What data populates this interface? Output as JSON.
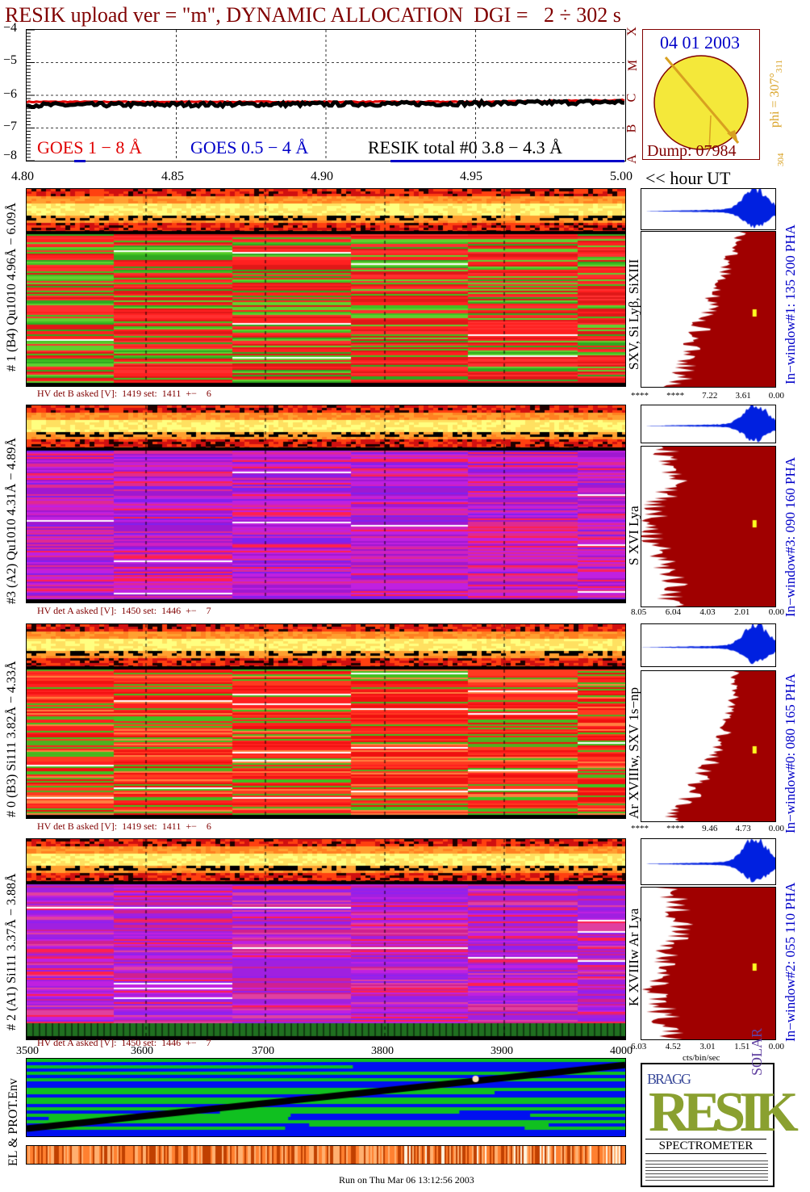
{
  "title": "RESIK upload ver = \"m\", DYNAMIC ALLOCATION  DGI =   2 ÷ 302 s",
  "goes_panel": {
    "yticks": [
      "−4",
      "−5",
      "−6",
      "−7",
      "−8"
    ],
    "class_labels": [
      "X",
      "M",
      "C",
      "B",
      "A"
    ],
    "legend_goes1": "GOES 1 − 8 Å",
    "legend_goes05": "GOES 0.5 − 4 Å",
    "legend_resik": "RESIK total #0  3.8 − 4.3 Å",
    "xticks": [
      "4.80",
      "4.85",
      "4.90",
      "4.95",
      "5.00"
    ],
    "xunit": "<< hour UT"
  },
  "sun": {
    "date": "04 01 2003",
    "dump": "Dump: 07984",
    "phi": "phi = 307°",
    "phi_sub": "311",
    "phi_low": "304"
  },
  "detectors": [
    {
      "ylabel": "# 1 (B4) Qu1010 4.96Å − 6.09Å",
      "lines": "SXV, Si Lyβ, SiXIII",
      "hv": "HV det B asked [V]:  1419 set:  1411  +−    6",
      "window": "In−window#1:  135 200 PHA",
      "xticks": [
        "****",
        "****",
        "7.22",
        "3.61",
        "0.00"
      ]
    },
    {
      "ylabel": "#3 (A2) Qu1010  4.31Å − 4.89Å",
      "lines": "S XVI Lya",
      "hv": "HV det A asked [V]:  1450 set:  1446  +−    7",
      "window": "In−window#3:  090 160 PHA",
      "xticks": [
        "8.05",
        "6.04",
        "4.03",
        "2.01",
        "0.00"
      ]
    },
    {
      "ylabel": "# 0 (B3) Si111  3.82Å − 4.33Å",
      "lines": "Ar XVIIIw,  SXV 1s−np",
      "hv": "HV det B asked [V]:  1419 set:  1411  +−    6",
      "window": "In−window#0:  080 165 PHA",
      "xticks": [
        "****",
        "****",
        "9.46",
        "4.73",
        "0.00"
      ]
    },
    {
      "ylabel": "# 2 (A1) Si111  3.37Å − 3.88Å",
      "lines": "K XVIIIw  Ar Lya",
      "hv": "HV det A asked [V]:  1450 set:  1446  +−    7",
      "window": "In−window#2:  055 110 PHA",
      "xticks": [
        "6.03",
        "4.52",
        "3.01",
        "1.51",
        "0.00"
      ]
    }
  ],
  "spectra_xunit": "cts/bin/sec",
  "env": {
    "ylabel": "EL & PROT.Env",
    "xticks": [
      "3500",
      "3600",
      "3700",
      "3800",
      "3900",
      "4000"
    ]
  },
  "logo": {
    "resik": "RESIK",
    "bragg": "BRAGG",
    "solar": "SOLAR",
    "spectrometer": "SPECTROMETER"
  },
  "footer": "Run on Thu Mar 06 13:12:56 2003",
  "colors": {
    "maroon": "#800000",
    "goes1": "#e00000",
    "goes05": "#0000c8",
    "sun": "#f4e83a",
    "spectrum": "#a00000",
    "pha": "#0020e0"
  },
  "chart_data": [
    {
      "type": "line",
      "title": "RESIK upload ver = \"m\", DYNAMIC ALLOCATION  DGI =   2 ÷ 302 s",
      "xlabel": "<< hour UT",
      "xlim": [
        4.8,
        5.0
      ],
      "ylim": [
        -8,
        -4
      ],
      "series": [
        {
          "name": "GOES 1 − 8 Å",
          "x": [
            4.8,
            4.85,
            4.9,
            4.95,
            5.0
          ],
          "values": [
            -6.2,
            -6.2,
            -6.2,
            -6.2,
            -6.15
          ]
        },
        {
          "name": "RESIK total #0  3.8 − 4.3 Å",
          "x": [
            4.8,
            4.85,
            4.9,
            4.95,
            5.0
          ],
          "values": [
            -6.3,
            -6.28,
            -6.27,
            -6.25,
            -6.2
          ]
        }
      ]
    },
    {
      "type": "line",
      "xlabel": "",
      "xlim": [
        3500,
        4000
      ],
      "series": [
        {
          "x": [
            3500,
            4000
          ],
          "values": [
            0,
            1
          ]
        }
      ]
    }
  ]
}
